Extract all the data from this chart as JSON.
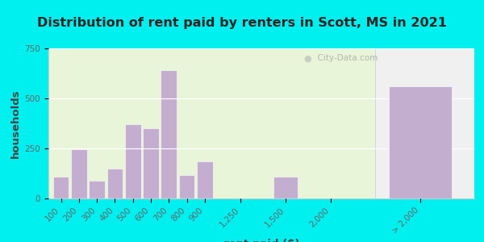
{
  "title": "Distribution of rent paid by renters in Scott, MS in 2021",
  "xlabel": "rent paid ($)",
  "ylabel": "households",
  "bar_labels": [
    "100",
    "200",
    "300",
    "400",
    "500",
    "600",
    "700",
    "800",
    "900",
    "1,250",
    "1,500",
    "2,000",
    "> 2,000"
  ],
  "bar_values": [
    110,
    245,
    90,
    150,
    370,
    350,
    640,
    115,
    185,
    0,
    110,
    0,
    560
  ],
  "bar_color": "#c4aed0",
  "bg_color_main": "#e8f5d8",
  "bg_color_right": "#f0f0f0",
  "outer_bg": "#00f0f0",
  "ylim": [
    0,
    750
  ],
  "yticks": [
    0,
    250,
    500,
    750
  ],
  "watermark": "City-Data.com",
  "title_fontsize": 11.5,
  "axis_label_fontsize": 9.5,
  "tick_fontsize": 7.5
}
